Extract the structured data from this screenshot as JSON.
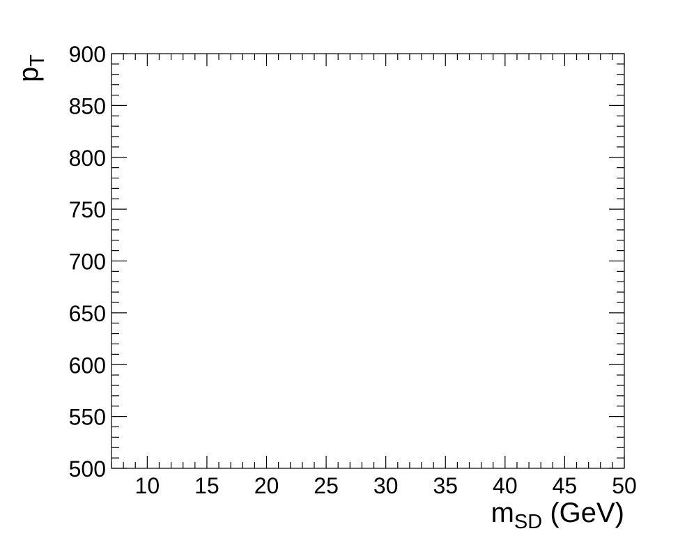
{
  "chart_data": {
    "type": "heatmap",
    "title": "",
    "xlabel": {
      "main": "m",
      "sub": "SD",
      "suffix": " (GeV)"
    },
    "ylabel": {
      "main": "p",
      "sub": "T"
    },
    "xlim": [
      7,
      50
    ],
    "ylim": [
      500,
      900
    ],
    "x_major_ticks": [
      10,
      15,
      20,
      25,
      30,
      35,
      40,
      45,
      50
    ],
    "y_major_ticks": [
      500,
      550,
      600,
      650,
      700,
      750,
      800,
      850,
      900
    ],
    "x_minor_step": 1,
    "y_minor_step": 10,
    "grid": false,
    "series": [],
    "colors": {
      "axis": "#000000",
      "background": "#ffffff"
    }
  }
}
